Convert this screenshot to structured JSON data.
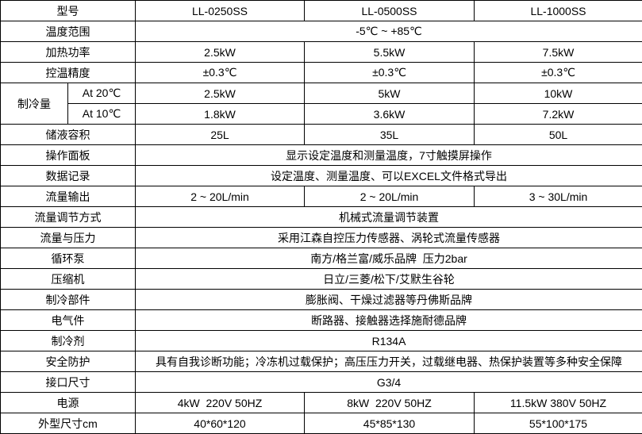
{
  "header": {
    "label": "型号",
    "models": [
      "LL-0250SS",
      "LL-0500SS",
      "LL-1000SS"
    ]
  },
  "rows": [
    {
      "label": "温度范围",
      "span": "-5℃ ~ +85℃"
    },
    {
      "label": "加热功率",
      "values": [
        "2.5kW",
        "5.5kW",
        "7.5kW"
      ]
    },
    {
      "label": "控温精度",
      "values": [
        "±0.3℃",
        "±0.3℃",
        "±0.3℃"
      ]
    },
    {
      "label": "制冷量",
      "sub": [
        {
          "label": "At 20℃",
          "values": [
            "2.5kW",
            "5kW",
            "10kW"
          ]
        },
        {
          "label": "At 10℃",
          "values": [
            "1.8kW",
            "3.6kW",
            "7.2kW"
          ]
        }
      ]
    },
    {
      "label": "储液容积",
      "values": [
        "25L",
        "35L",
        "50L"
      ]
    },
    {
      "label": "操作面板",
      "span": "显示设定温度和测量温度，7寸触摸屏操作"
    },
    {
      "label": "数据记录",
      "span": "设定温度、测量温度、可以EXCEL文件格式导出"
    },
    {
      "label": "流量输出",
      "values": [
        "2 ~ 20L/min",
        "2 ~ 20L/min",
        "3 ~ 30L/min"
      ]
    },
    {
      "label": "流量调节方式",
      "span": "机械式流量调节装置"
    },
    {
      "label": "流量与压力",
      "span": "采用江森自控压力传感器、涡轮式流量传感器"
    },
    {
      "label": "循环泵",
      "span": "南方/格兰富/威乐品牌  压力2bar"
    },
    {
      "label": "压缩机",
      "span": "日立/三菱/松下/艾默生谷轮"
    },
    {
      "label": "制冷部件",
      "span": "膨胀阀、干燥过滤器等丹佛斯品牌"
    },
    {
      "label": "电气件",
      "span": "断路器、接触器选择施耐德品牌"
    },
    {
      "label": "制冷剂",
      "span": "R134A"
    },
    {
      "label": "安全防护",
      "span": "具有自我诊断功能；冷冻机过载保护；高压压力开关，过载继电器、热保护装置等多种安全保障"
    },
    {
      "label": "接口尺寸",
      "span": "G3/4"
    },
    {
      "label": "电源",
      "values": [
        "4kW  220V 50HZ",
        "8kW  220V 50HZ",
        "11.5kW 380V 50HZ"
      ]
    },
    {
      "label": "外型尺寸cm",
      "values": [
        "40*60*120",
        "45*85*130",
        "55*100*175"
      ]
    }
  ]
}
